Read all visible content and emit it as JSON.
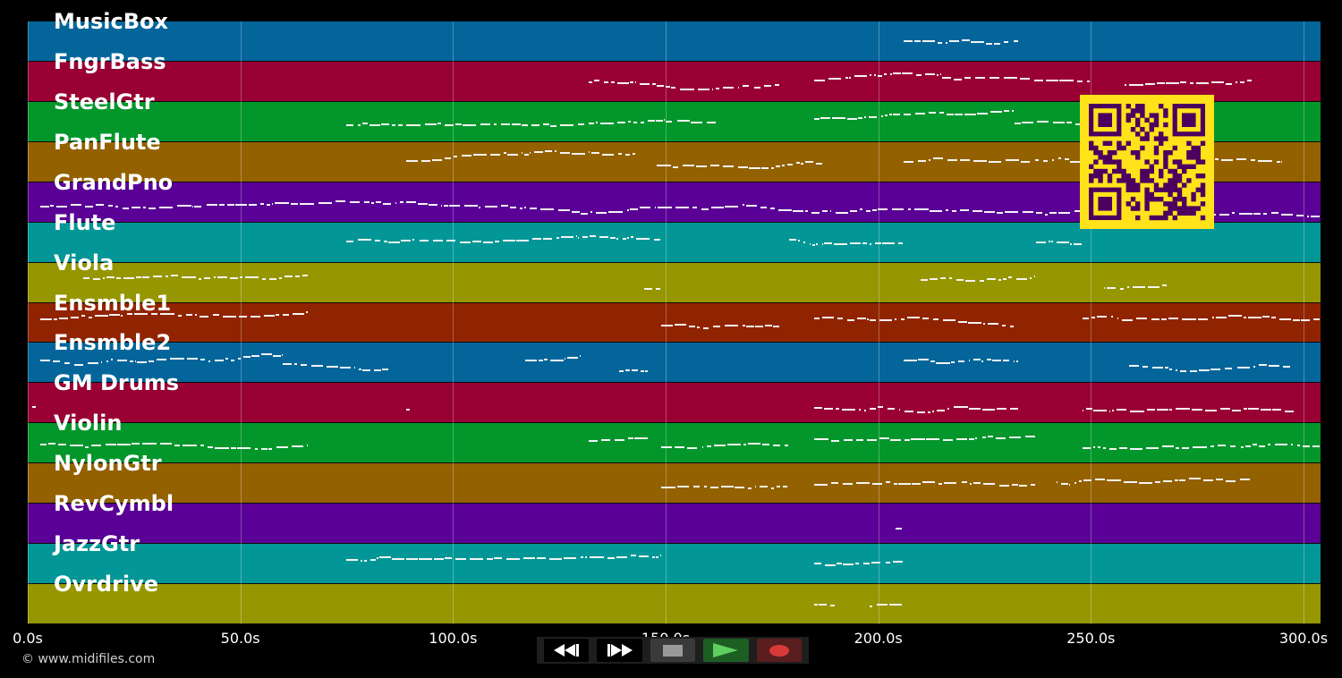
{
  "app": {
    "copyright": "© www.midifiles.com"
  },
  "timeline": {
    "duration_s": 304,
    "ticks": [
      {
        "value": 0,
        "label": "0.0s"
      },
      {
        "value": 50,
        "label": "50.0s"
      },
      {
        "value": 100,
        "label": "100.0s"
      },
      {
        "value": 150,
        "label": "150.0s"
      },
      {
        "value": 200,
        "label": "200.0s"
      },
      {
        "value": 250,
        "label": "250.0s"
      },
      {
        "value": 300,
        "label": "300.0s"
      }
    ]
  },
  "tracks": [
    {
      "name": "MusicBox",
      "color": "#03659a"
    },
    {
      "name": "FngrBass",
      "color": "#990033"
    },
    {
      "name": "SteelGtr",
      "color": "#03962b"
    },
    {
      "name": "PanFlute",
      "color": "#936100"
    },
    {
      "name": "GrandPno",
      "color": "#5a0096"
    },
    {
      "name": "Flute",
      "color": "#039696"
    },
    {
      "name": "Viola",
      "color": "#969600"
    },
    {
      "name": "Ensmble1",
      "color": "#912400"
    },
    {
      "name": "Ensmble2",
      "color": "#03659a"
    },
    {
      "name": "GM Drums",
      "color": "#990033"
    },
    {
      "name": "Violin",
      "color": "#03962b"
    },
    {
      "name": "NylonGtr",
      "color": "#936100"
    },
    {
      "name": "RevCymbl",
      "color": "#5a0096"
    },
    {
      "name": "JazzGtr",
      "color": "#039696"
    },
    {
      "name": "Ovrdrive",
      "color": "#969600"
    }
  ],
  "note_activity": [
    {
      "track": 0,
      "segments": [
        [
          206,
          233
        ]
      ]
    },
    {
      "track": 1,
      "segments": [
        [
          132,
          148
        ],
        [
          148,
          177
        ],
        [
          185,
          215
        ],
        [
          215,
          250
        ],
        [
          258,
          288
        ]
      ]
    },
    {
      "track": 2,
      "segments": [
        [
          75,
          150
        ],
        [
          150,
          162
        ],
        [
          185,
          232
        ],
        [
          232,
          248
        ]
      ]
    },
    {
      "track": 3,
      "segments": [
        [
          89,
          143
        ],
        [
          148,
          187
        ],
        [
          206,
          245
        ],
        [
          245,
          295
        ]
      ]
    },
    {
      "track": 4,
      "segments": [
        [
          3,
          304
        ]
      ]
    },
    {
      "track": 5,
      "segments": [
        [
          75,
          149
        ],
        [
          179,
          206
        ],
        [
          237,
          248
        ]
      ]
    },
    {
      "track": 6,
      "segments": [
        [
          13,
          66
        ],
        [
          145,
          149
        ],
        [
          210,
          237
        ],
        [
          253,
          268
        ]
      ]
    },
    {
      "track": 7,
      "segments": [
        [
          3,
          66
        ],
        [
          149,
          177
        ],
        [
          185,
          232
        ],
        [
          248,
          304
        ]
      ]
    },
    {
      "track": 8,
      "segments": [
        [
          3,
          60
        ],
        [
          60,
          85
        ],
        [
          117,
          130
        ],
        [
          139,
          146
        ],
        [
          206,
          233
        ],
        [
          259,
          297
        ]
      ]
    },
    {
      "track": 9,
      "segments": [
        [
          1,
          2
        ],
        [
          89,
          90
        ],
        [
          185,
          233
        ],
        [
          248,
          298
        ]
      ]
    },
    {
      "track": 10,
      "segments": [
        [
          3,
          66
        ],
        [
          132,
          146
        ],
        [
          149,
          179
        ],
        [
          185,
          237
        ],
        [
          248,
          304
        ]
      ]
    },
    {
      "track": 11,
      "segments": [
        [
          149,
          179
        ],
        [
          185,
          237
        ],
        [
          242,
          288
        ]
      ]
    },
    {
      "track": 12,
      "segments": [
        [
          204,
          206
        ]
      ]
    },
    {
      "track": 13,
      "segments": [
        [
          75,
          149
        ],
        [
          185,
          206
        ]
      ]
    },
    {
      "track": 14,
      "segments": [
        [
          185,
          190
        ],
        [
          198,
          206
        ]
      ]
    }
  ],
  "transport": {
    "buttons": [
      {
        "name": "rewind-button",
        "icon": "rewind-icon"
      },
      {
        "name": "fast-forward-button",
        "icon": "fast-forward-icon"
      },
      {
        "name": "stop-button",
        "icon": "stop-icon"
      },
      {
        "name": "play-button",
        "icon": "play-icon"
      },
      {
        "name": "record-button",
        "icon": "record-icon"
      }
    ]
  },
  "qr_code": {
    "color": "#ffe21a",
    "dark": "#4b0060",
    "icon": "qr-code-icon"
  }
}
